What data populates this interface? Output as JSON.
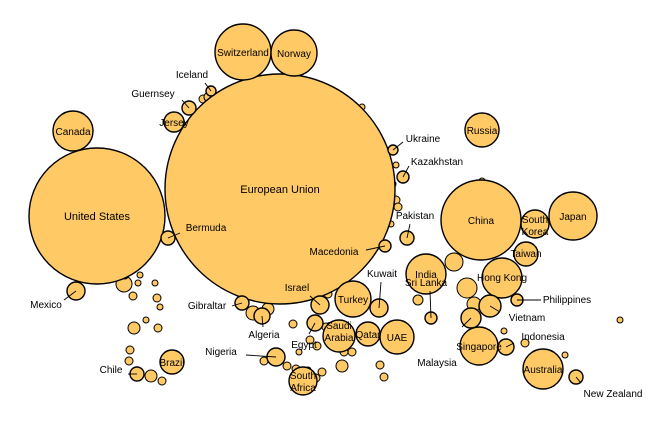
{
  "chart_data": {
    "type": "bubble",
    "entities": [
      {
        "name": "European Union",
        "labeled": true,
        "label_inside": true
      },
      {
        "name": "United States",
        "labeled": true,
        "label_inside": true
      },
      {
        "name": "China",
        "labeled": true,
        "label_inside": true
      },
      {
        "name": "Switzerland",
        "labeled": true,
        "label_inside": true
      },
      {
        "name": "Norway",
        "labeled": true,
        "label_inside": true
      },
      {
        "name": "Canada",
        "labeled": true,
        "label_inside": true
      },
      {
        "name": "Russia",
        "labeled": true,
        "label_inside": true
      },
      {
        "name": "Japan",
        "labeled": true,
        "label_inside": true
      },
      {
        "name": "South Korea",
        "labeled": true,
        "label_inside": true
      },
      {
        "name": "Taiwan",
        "labeled": true,
        "label_inside": true
      },
      {
        "name": "India",
        "labeled": true,
        "label_inside": true
      },
      {
        "name": "Hong Kong",
        "labeled": true,
        "label_inside": true
      },
      {
        "name": "Singapore",
        "labeled": true,
        "label_inside": true
      },
      {
        "name": "Australia",
        "labeled": true,
        "label_inside": true
      },
      {
        "name": "UAE",
        "labeled": true,
        "label_inside": true
      },
      {
        "name": "Turkey",
        "labeled": true,
        "label_inside": true
      },
      {
        "name": "Saudi Arabia",
        "labeled": true,
        "label_inside": true
      },
      {
        "name": "Qatar",
        "labeled": true,
        "label_inside": true
      },
      {
        "name": "Brazil",
        "labeled": true,
        "label_inside": true
      },
      {
        "name": "South Africa",
        "labeled": true,
        "label_inside": true
      },
      {
        "name": "Jersey",
        "labeled": true,
        "label_inside": true
      },
      {
        "name": "Iceland",
        "labeled": true,
        "label_inside": false
      },
      {
        "name": "Guernsey",
        "labeled": true,
        "label_inside": false
      },
      {
        "name": "Ukraine",
        "labeled": true,
        "label_inside": false
      },
      {
        "name": "Kazakhstan",
        "labeled": true,
        "label_inside": false
      },
      {
        "name": "Pakistan",
        "labeled": true,
        "label_inside": false
      },
      {
        "name": "Bermuda",
        "labeled": true,
        "label_inside": false
      },
      {
        "name": "Macedonia",
        "labeled": true,
        "label_inside": false
      },
      {
        "name": "Kuwait",
        "labeled": true,
        "label_inside": false
      },
      {
        "name": "Israel",
        "labeled": true,
        "label_inside": false
      },
      {
        "name": "Sri Lanka",
        "labeled": true,
        "label_inside": false
      },
      {
        "name": "Mexico",
        "labeled": true,
        "label_inside": false
      },
      {
        "name": "Gibraltar",
        "labeled": true,
        "label_inside": false
      },
      {
        "name": "Algeria",
        "labeled": true,
        "label_inside": false
      },
      {
        "name": "Egypt",
        "labeled": true,
        "label_inside": false
      },
      {
        "name": "Nigeria",
        "labeled": true,
        "label_inside": false
      },
      {
        "name": "Chile",
        "labeled": true,
        "label_inside": false
      },
      {
        "name": "Philippines",
        "labeled": true,
        "label_inside": false
      },
      {
        "name": "Vietnam",
        "labeled": true,
        "label_inside": false
      },
      {
        "name": "Indonesia",
        "labeled": true,
        "label_inside": false
      },
      {
        "name": "Malaysia",
        "labeled": true,
        "label_inside": false
      },
      {
        "name": "New Zealand",
        "labeled": true,
        "label_inside": false
      }
    ],
    "unlabeled_bubble_count": 50,
    "colors": {
      "fill": "#ffc966",
      "stroke": "#000000"
    }
  }
}
